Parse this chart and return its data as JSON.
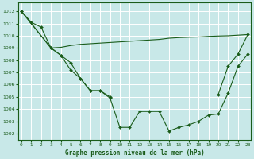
{
  "title": "Graphe pression niveau de la mer (hPa)",
  "bg_color": "#c8e8e8",
  "grid_color": "#b0d8d8",
  "line_color": "#1a5c1a",
  "xlim": [
    -0.3,
    23.3
  ],
  "ylim": [
    1001.5,
    1012.7
  ],
  "yticks": [
    1002,
    1003,
    1004,
    1005,
    1006,
    1007,
    1008,
    1009,
    1010,
    1011,
    1012
  ],
  "xticks": [
    0,
    1,
    2,
    3,
    4,
    5,
    6,
    7,
    8,
    9,
    10,
    11,
    12,
    13,
    14,
    15,
    16,
    17,
    18,
    19,
    20,
    21,
    22,
    23
  ],
  "series": [
    {
      "x": [
        0,
        1,
        2,
        3,
        4,
        5,
        6,
        7,
        8,
        9
      ],
      "y": [
        1012.0,
        1011.1,
        1010.7,
        1009.0,
        1008.4,
        1007.8,
        1006.5,
        1005.5,
        1005.5,
        1005.0
      ],
      "has_markers": true
    },
    {
      "x": [
        0,
        3,
        4,
        5,
        6,
        7,
        8,
        9,
        10,
        11,
        12,
        13,
        14,
        15,
        16,
        17,
        18,
        19,
        20,
        21,
        22,
        23
      ],
      "y": [
        1012.0,
        1009.0,
        1009.05,
        1009.2,
        1009.3,
        1009.35,
        1009.4,
        1009.45,
        1009.5,
        1009.55,
        1009.6,
        1009.65,
        1009.7,
        1009.8,
        1009.85,
        1009.88,
        1009.9,
        1009.95,
        1009.98,
        1010.0,
        1010.05,
        1010.1
      ],
      "has_markers": false
    },
    {
      "x": [
        0,
        3,
        4,
        5,
        6,
        7,
        8,
        9,
        10,
        11,
        12,
        13,
        14,
        15,
        16,
        17,
        18,
        19,
        20,
        21,
        22,
        23
      ],
      "y": [
        1012.0,
        1009.0,
        1008.4,
        1007.2,
        1006.5,
        1005.5,
        1005.5,
        1004.9,
        1002.5,
        1002.5,
        1003.8,
        1003.8,
        1003.8,
        1002.2,
        1002.5,
        1002.7,
        1003.0,
        1003.5,
        1003.6,
        1005.3,
        1007.5,
        1008.5
      ],
      "has_markers": true
    },
    {
      "x": [
        20,
        21,
        22,
        23
      ],
      "y": [
        1005.2,
        1007.5,
        1008.5,
        1010.1
      ],
      "has_markers": true
    }
  ]
}
